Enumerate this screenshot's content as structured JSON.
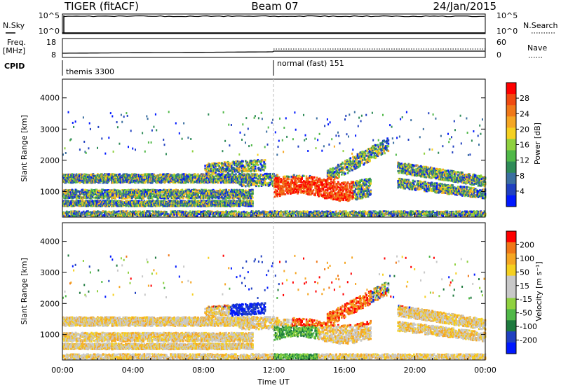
{
  "header": {
    "title": "TIGER (fitACF)",
    "beam": "Beam 07",
    "date": "24/Jan/2015"
  },
  "top_panels": {
    "nsky_label": "N.Sky",
    "nsky_ticks": [
      "10^5",
      "10^0"
    ],
    "nsearch_label": "N.Search",
    "nsearch_ticks": [
      "10^5",
      "10^0"
    ],
    "freq_label": "Freq.",
    "freq_unit": "[MHz]",
    "freq_ticks": [
      "18",
      "8"
    ],
    "nave_label": "Nave",
    "nave_ticks": [
      "60",
      "0"
    ],
    "cpid_label": "CPID",
    "cpid_segments": [
      {
        "label": "themis 3300",
        "start_hour": 0
      },
      {
        "label": "normal (fast) 151",
        "start_hour": 12
      }
    ]
  },
  "chart_data": [
    {
      "type": "heatmap",
      "name": "power",
      "ylabel": "Slant Range [km]",
      "ylim": [
        180,
        4600
      ],
      "yticks": [
        "4000",
        "3000",
        "2000",
        "1000"
      ],
      "ytick_values": [
        4000,
        3000,
        2000,
        1000
      ],
      "xlim": [
        0,
        24
      ],
      "colorbar": {
        "label": "Power [dB]",
        "ticks": [
          "28",
          "24",
          "20",
          "16",
          "12",
          "8",
          "4"
        ],
        "tick_values": [
          28,
          24,
          20,
          16,
          12,
          8,
          4
        ],
        "colors": [
          "#0018ff",
          "#2040c0",
          "#3b6fa0",
          "#2e8b57",
          "#50b848",
          "#8fd13f",
          "#f5d020",
          "#f5a623",
          "#f07818",
          "#f04a10",
          "#ff0000"
        ]
      }
    },
    {
      "type": "heatmap",
      "name": "velocity",
      "ylabel": "Slant Range [km]",
      "ylim": [
        180,
        4600
      ],
      "yticks": [
        "4000",
        "3000",
        "2000",
        "1000"
      ],
      "ytick_values": [
        4000,
        3000,
        2000,
        1000
      ],
      "xlim": [
        0,
        24
      ],
      "xlabel": "Time UT",
      "xticks": [
        "00:00",
        "04:00",
        "08:00",
        "12:00",
        "16:00",
        "20:00",
        "00:00"
      ],
      "xtick_values": [
        0,
        4,
        8,
        12,
        16,
        20,
        24
      ],
      "colorbar": {
        "label": "Velocity [m s⁻¹]",
        "ticks": [
          "200",
          "100",
          "50",
          "15",
          "-15",
          "-50",
          "-100",
          "-200"
        ],
        "colors": [
          "#0018ff",
          "#2040c0",
          "#1e7a3e",
          "#50b848",
          "#8fd13f",
          "#c8c8c8",
          "#c8c8c8",
          "#f5d020",
          "#f5a623",
          "#f07818",
          "#ff0000"
        ]
      }
    }
  ]
}
